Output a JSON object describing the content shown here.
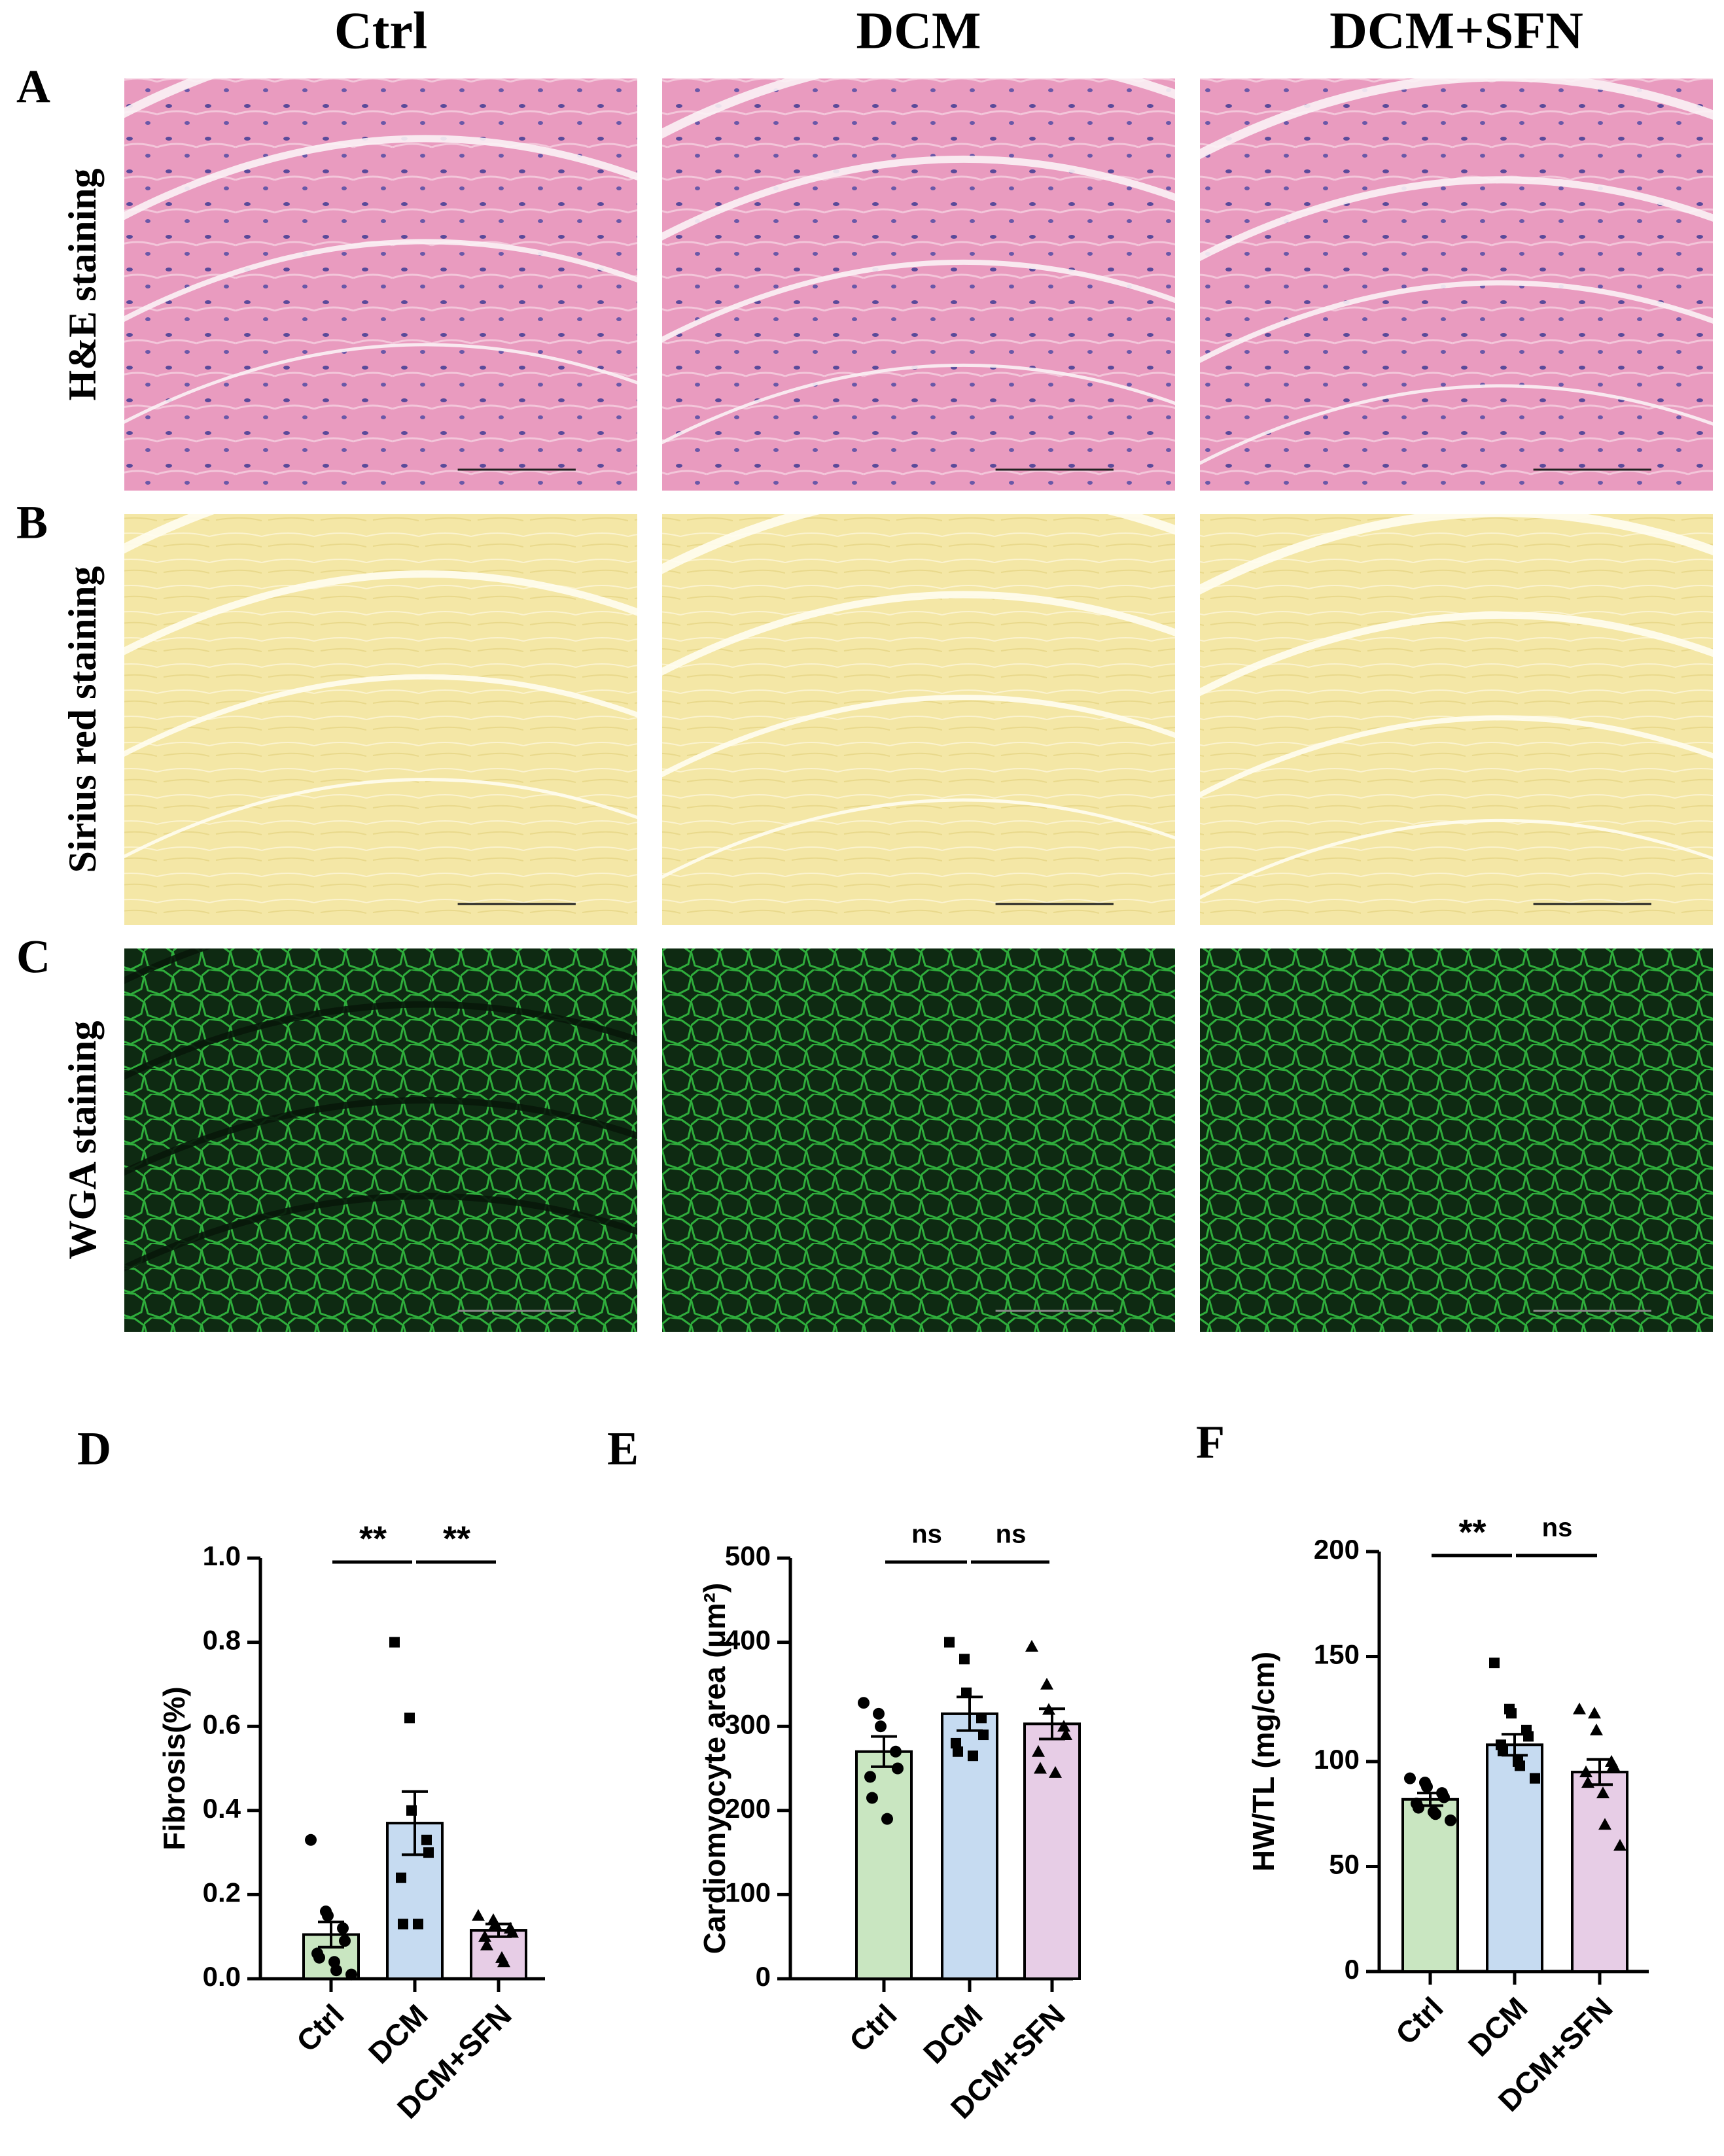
{
  "figure": {
    "columns": [
      "Ctrl",
      "DCM",
      "DCM+SFN"
    ],
    "rows": [
      {
        "letter": "A",
        "title": "H&E staining"
      },
      {
        "letter": "B",
        "title": "Sirius  red staining"
      },
      {
        "letter": "C",
        "title": "WGA staining"
      }
    ]
  },
  "chart_data": [
    {
      "type": "bar",
      "panel": "D",
      "ylabel": "Fibrosis(%)",
      "categories": [
        "Ctrl",
        "DCM",
        "DCM+SFN"
      ],
      "values": [
        0.105,
        0.37,
        0.115
      ],
      "errors": [
        0.03,
        0.075,
        0.015
      ],
      "points": [
        [
          0.33,
          0.16,
          0.15,
          0.12,
          0.09,
          0.06,
          0.05,
          0.04,
          0.02,
          0.01
        ],
        [
          0.8,
          0.62,
          0.4,
          0.33,
          0.3,
          0.24,
          0.13,
          0.13
        ],
        [
          0.15,
          0.14,
          0.13,
          0.12,
          0.11,
          0.1,
          0.08,
          0.05,
          0.04
        ]
      ],
      "colors": [
        "#c9e6c1",
        "#c6dbf1",
        "#e7cde6"
      ],
      "markers": [
        "circle",
        "square",
        "triangle"
      ],
      "annotations": [
        "**",
        "**"
      ],
      "ylim": [
        0,
        1.0
      ],
      "yticks": [
        {
          "value": 0,
          "label": "0.0"
        },
        0.2,
        0.4,
        0.6,
        0.8,
        {
          "value": 1.0,
          "label": "1.0"
        }
      ]
    },
    {
      "type": "bar",
      "panel": "E",
      "ylabel": "Cardiomyocyte area (μm²)",
      "categories": [
        "Ctrl",
        "DCM",
        "DCM+SFN"
      ],
      "values": [
        270,
        315,
        303
      ],
      "errors": [
        18,
        20,
        18
      ],
      "points": [
        [
          328,
          315,
          300,
          270,
          250,
          240,
          215,
          190
        ],
        [
          400,
          380,
          340,
          310,
          290,
          280,
          270,
          265
        ],
        [
          395,
          350,
          320,
          300,
          290,
          270,
          250,
          245
        ]
      ],
      "colors": [
        "#c9e6c1",
        "#c6dbf1",
        "#e7cde6"
      ],
      "markers": [
        "circle",
        "square",
        "triangle"
      ],
      "annotations": [
        "ns",
        "ns"
      ],
      "ylim": [
        0,
        500
      ],
      "yticks": [
        0,
        100,
        200,
        300,
        400,
        500
      ]
    },
    {
      "type": "bar",
      "panel": "F",
      "ylabel": "HW/TL (mg/cm)",
      "categories": [
        "Ctrl",
        "DCM",
        "DCM+SFN"
      ],
      "values": [
        82,
        108,
        95
      ],
      "errors": [
        3,
        5,
        6
      ],
      "points": [
        [
          92,
          90,
          88,
          85,
          83,
          80,
          78,
          76,
          75,
          72
        ],
        [
          147,
          125,
          123,
          115,
          112,
          108,
          105,
          100,
          98,
          92
        ],
        [
          125,
          123,
          115,
          100,
          98,
          95,
          90,
          85,
          70,
          60
        ]
      ],
      "colors": [
        "#c9e6c1",
        "#c6dbf1",
        "#e7cde6"
      ],
      "markers": [
        "circle",
        "square",
        "triangle"
      ],
      "annotations": [
        "**",
        "ns"
      ],
      "ylim": [
        0,
        200
      ],
      "yticks": [
        0,
        50,
        100,
        150,
        200
      ]
    }
  ]
}
